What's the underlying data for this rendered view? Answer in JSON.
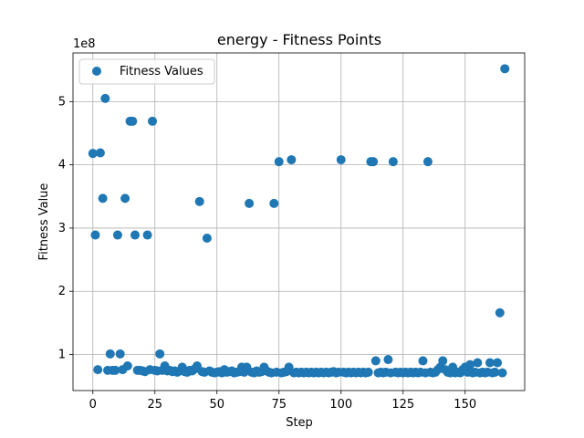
{
  "chart_data": {
    "type": "scatter",
    "title": "energy - Fitness Points",
    "xlabel": "Step",
    "ylabel": "Fitness Value",
    "y_offset_label": "1e8",
    "xlim": [
      -8,
      174
    ],
    "ylim": [
      0.43,
      5.77
    ],
    "x_ticks": [
      0,
      25,
      50,
      75,
      100,
      125,
      150
    ],
    "x_tick_labels": [
      "0",
      "25",
      "50",
      "75",
      "100",
      "125",
      "150"
    ],
    "y_ticks": [
      1,
      2,
      3,
      4,
      5
    ],
    "y_tick_labels": [
      "1",
      "2",
      "3",
      "4",
      "5"
    ],
    "grid": true,
    "legend": {
      "placement": "top-left",
      "entries": [
        "Fitness Values"
      ]
    },
    "colors": {
      "series": "#1f77b4",
      "grid": "#b0b0b0",
      "axes": "#000000",
      "legend_border": "#cccccc"
    },
    "series": [
      {
        "name": "Fitness Values",
        "points": [
          [
            0,
            4.18
          ],
          [
            1,
            2.89
          ],
          [
            2,
            0.76
          ],
          [
            3,
            4.19
          ],
          [
            4,
            3.47
          ],
          [
            5,
            5.05
          ],
          [
            6,
            0.75
          ],
          [
            7,
            1.01
          ],
          [
            8,
            0.75
          ],
          [
            9,
            0.75
          ],
          [
            10,
            2.89
          ],
          [
            11,
            1.01
          ],
          [
            12,
            0.76
          ],
          [
            13,
            3.47
          ],
          [
            14,
            0.82
          ],
          [
            15,
            4.69
          ],
          [
            16,
            4.69
          ],
          [
            17,
            2.89
          ],
          [
            18,
            0.75
          ],
          [
            19,
            0.75
          ],
          [
            20,
            0.74
          ],
          [
            21,
            0.73
          ],
          [
            22,
            2.89
          ],
          [
            23,
            0.76
          ],
          [
            24,
            4.69
          ],
          [
            25,
            0.75
          ],
          [
            26,
            0.74
          ],
          [
            27,
            1.01
          ],
          [
            28,
            0.75
          ],
          [
            29,
            0.82
          ],
          [
            30,
            0.74
          ],
          [
            31,
            0.75
          ],
          [
            32,
            0.73
          ],
          [
            33,
            0.74
          ],
          [
            34,
            0.72
          ],
          [
            35,
            0.74
          ],
          [
            36,
            0.8
          ],
          [
            37,
            0.73
          ],
          [
            38,
            0.72
          ],
          [
            39,
            0.75
          ],
          [
            40,
            0.74
          ],
          [
            41,
            0.77
          ],
          [
            42,
            0.82
          ],
          [
            43,
            3.42
          ],
          [
            44,
            0.73
          ],
          [
            45,
            0.72
          ],
          [
            46,
            2.84
          ],
          [
            47,
            0.74
          ],
          [
            48,
            0.72
          ],
          [
            49,
            0.71
          ],
          [
            50,
            0.72
          ],
          [
            51,
            0.73
          ],
          [
            52,
            0.71
          ],
          [
            53,
            0.76
          ],
          [
            54,
            0.72
          ],
          [
            55,
            0.73
          ],
          [
            56,
            0.74
          ],
          [
            57,
            0.71
          ],
          [
            58,
            0.72
          ],
          [
            59,
            0.73
          ],
          [
            60,
            0.8
          ],
          [
            61,
            0.72
          ],
          [
            62,
            0.8
          ],
          [
            63,
            3.39
          ],
          [
            64,
            0.72
          ],
          [
            65,
            0.71
          ],
          [
            66,
            0.74
          ],
          [
            67,
            0.72
          ],
          [
            68,
            0.73
          ],
          [
            69,
            0.8
          ],
          [
            70,
            0.74
          ],
          [
            71,
            0.72
          ],
          [
            72,
            0.71
          ],
          [
            73,
            3.39
          ],
          [
            74,
            0.72
          ],
          [
            75,
            4.05
          ],
          [
            76,
            0.71
          ],
          [
            77,
            0.72
          ],
          [
            78,
            0.73
          ],
          [
            79,
            0.8
          ],
          [
            80,
            4.08
          ],
          [
            81,
            0.71
          ],
          [
            82,
            0.72
          ],
          [
            83,
            0.71
          ],
          [
            84,
            0.72
          ],
          [
            85,
            0.71
          ],
          [
            86,
            0.72
          ],
          [
            87,
            0.71
          ],
          [
            88,
            0.72
          ],
          [
            89,
            0.71
          ],
          [
            90,
            0.72
          ],
          [
            91,
            0.71
          ],
          [
            92,
            0.72
          ],
          [
            93,
            0.71
          ],
          [
            94,
            0.72
          ],
          [
            95,
            0.71
          ],
          [
            96,
            0.72
          ],
          [
            97,
            0.73
          ],
          [
            98,
            0.71
          ],
          [
            99,
            0.72
          ],
          [
            100,
            4.08
          ],
          [
            101,
            0.72
          ],
          [
            102,
            0.71
          ],
          [
            103,
            0.72
          ],
          [
            104,
            0.71
          ],
          [
            105,
            0.72
          ],
          [
            106,
            0.71
          ],
          [
            107,
            0.72
          ],
          [
            108,
            0.71
          ],
          [
            109,
            0.72
          ],
          [
            110,
            0.71
          ],
          [
            111,
            0.72
          ],
          [
            112,
            4.05
          ],
          [
            113,
            4.05
          ],
          [
            114,
            0.9
          ],
          [
            115,
            0.71
          ],
          [
            116,
            0.72
          ],
          [
            117,
            0.71
          ],
          [
            118,
            0.72
          ],
          [
            119,
            0.92
          ],
          [
            120,
            0.71
          ],
          [
            121,
            4.05
          ],
          [
            122,
            0.72
          ],
          [
            123,
            0.71
          ],
          [
            124,
            0.72
          ],
          [
            125,
            0.71
          ],
          [
            126,
            0.72
          ],
          [
            127,
            0.71
          ],
          [
            128,
            0.72
          ],
          [
            129,
            0.71
          ],
          [
            130,
            0.72
          ],
          [
            131,
            0.71
          ],
          [
            132,
            0.72
          ],
          [
            133,
            0.9
          ],
          [
            134,
            0.71
          ],
          [
            135,
            4.05
          ],
          [
            136,
            0.72
          ],
          [
            137,
            0.71
          ],
          [
            138,
            0.72
          ],
          [
            139,
            0.76
          ],
          [
            140,
            0.8
          ],
          [
            141,
            0.9
          ],
          [
            142,
            0.76
          ],
          [
            143,
            0.72
          ],
          [
            144,
            0.71
          ],
          [
            145,
            0.8
          ],
          [
            146,
            0.71
          ],
          [
            147,
            0.72
          ],
          [
            148,
            0.71
          ],
          [
            149,
            0.76
          ],
          [
            150,
            0.8
          ],
          [
            151,
            0.72
          ],
          [
            152,
            0.84
          ],
          [
            153,
            0.71
          ],
          [
            154,
            0.72
          ],
          [
            155,
            0.87
          ],
          [
            156,
            0.71
          ],
          [
            157,
            0.72
          ],
          [
            158,
            0.71
          ],
          [
            159,
            0.72
          ],
          [
            160,
            0.87
          ],
          [
            161,
            0.71
          ],
          [
            162,
            0.72
          ],
          [
            163,
            0.87
          ],
          [
            164,
            1.66
          ],
          [
            165,
            0.71
          ],
          [
            166,
            5.52
          ]
        ]
      }
    ]
  }
}
